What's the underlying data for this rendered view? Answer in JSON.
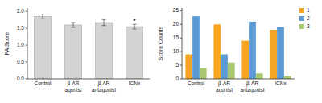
{
  "chart_data": [
    {
      "type": "bar",
      "categories": [
        "Control",
        "β-AR\nagonist",
        "β-AR\nantagonist",
        "ICNx"
      ],
      "values": [
        1.85,
        1.6,
        1.67,
        1.55
      ],
      "errors": [
        0.07,
        0.07,
        0.09,
        0.07
      ],
      "color": "#d3d3d3",
      "y_label": "FA Score",
      "ylim": [
        0,
        2.1
      ],
      "yticks": [
        {
          "value": 0,
          "label": "0.0"
        },
        0.5,
        {
          "value": 1.0,
          "label": "1.0"
        },
        1.5,
        {
          "value": 2.0,
          "label": "2.0"
        }
      ],
      "annotations": [
        {
          "text": "*",
          "category": "ICNx"
        }
      ],
      "grid": false
    },
    {
      "type": "bar",
      "categories": [
        "Control",
        "β-AR\nagonist",
        "β-AR\nantagonist",
        "ICNx"
      ],
      "series": [
        {
          "name": "1",
          "color": "#f5a623",
          "values": [
            9,
            20,
            14,
            18
          ]
        },
        {
          "name": "2",
          "color": "#5b9bd5",
          "values": [
            23,
            9,
            21,
            19
          ]
        },
        {
          "name": "3",
          "color": "#a8c76e",
          "values": [
            4,
            6,
            2,
            1
          ]
        }
      ],
      "y_label": "Score Counts",
      "ylim": [
        0,
        26
      ],
      "yticks": [
        0,
        5,
        10,
        15,
        20,
        25
      ],
      "legend": "right",
      "grid": false
    }
  ]
}
